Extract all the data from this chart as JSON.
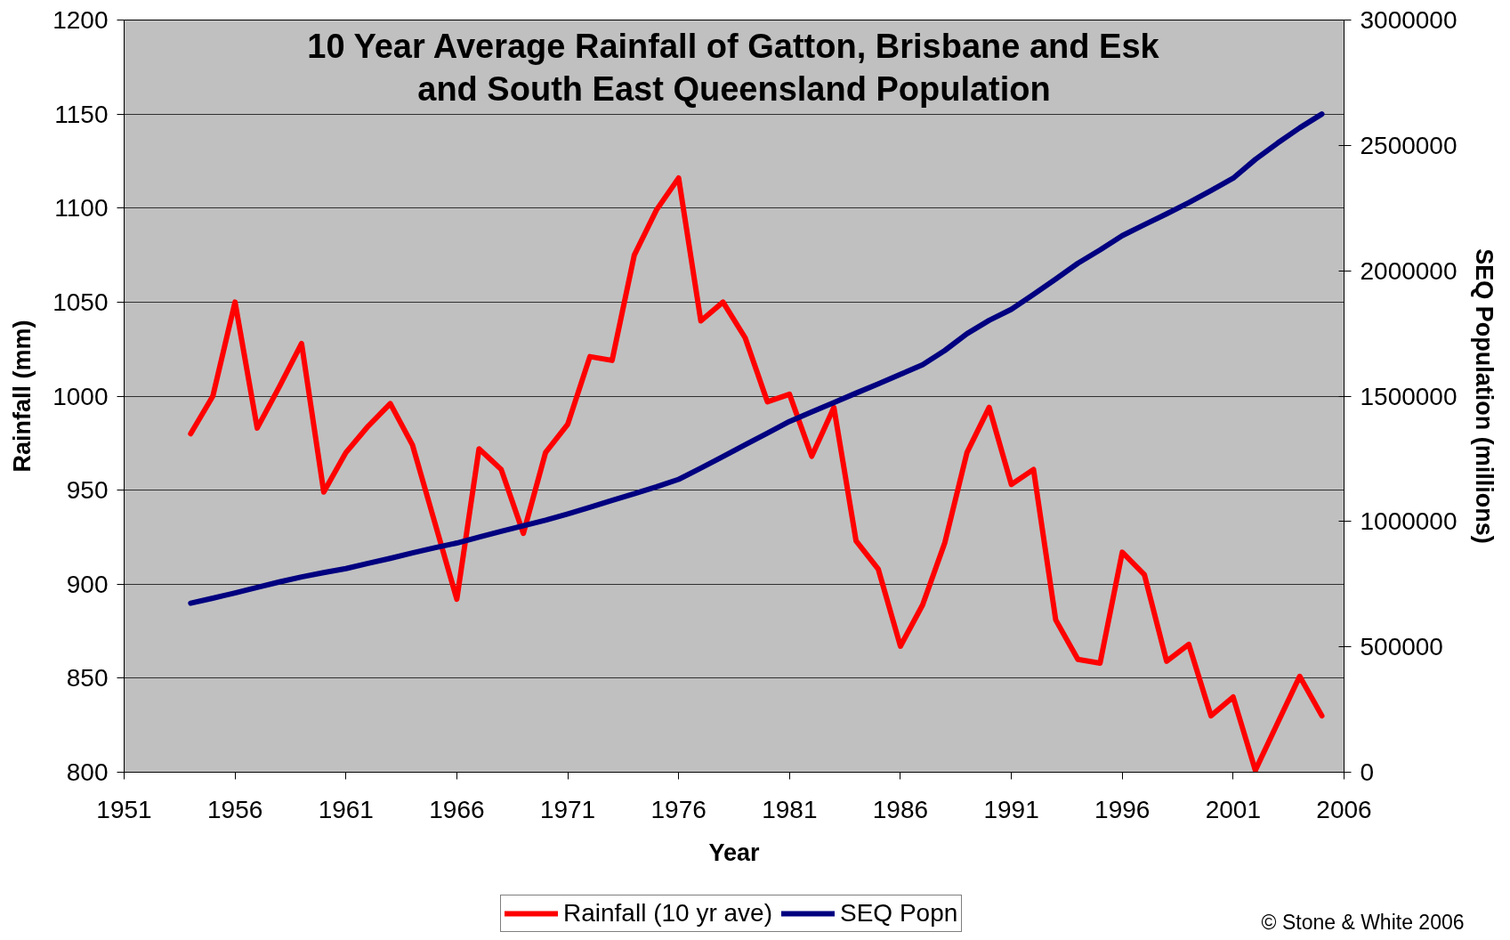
{
  "chart_data": {
    "type": "line",
    "title": "10 Year Average Rainfall of Gatton, Brisbane and Esk\nand South East Queensland Population",
    "xlabel": "Year",
    "ylabel": "Rainfall (mm)",
    "y2label": "SEQ Population (millions)",
    "annotations": [
      "© Stone & White 2006"
    ],
    "x": [
      1954,
      1955,
      1956,
      1957,
      1958,
      1959,
      1960,
      1961,
      1962,
      1963,
      1964,
      1965,
      1966,
      1967,
      1968,
      1969,
      1970,
      1971,
      1972,
      1973,
      1974,
      1975,
      1976,
      1977,
      1978,
      1979,
      1980,
      1981,
      1982,
      1983,
      1984,
      1985,
      1986,
      1987,
      1988,
      1989,
      1990,
      1991,
      1992,
      1993,
      1994,
      1995,
      1996,
      1997,
      1998,
      1999,
      2000,
      2001,
      2002,
      2003,
      2004,
      2005
    ],
    "series": [
      {
        "name": "Rainfall (10 yr ave)",
        "color": "#ff0000",
        "values": [
          980,
          1000,
          1050,
          983,
          1005,
          1028,
          949,
          970,
          984,
          996,
          974,
          933,
          892,
          972,
          961,
          927,
          970,
          985,
          1021,
          1019,
          1075,
          1099,
          1116,
          1040,
          1050,
          1031,
          997,
          1001,
          968,
          994,
          923,
          908,
          867,
          889,
          922,
          970,
          994,
          953,
          961,
          881,
          860,
          858,
          917,
          905,
          859,
          868,
          830,
          840,
          801,
          826,
          851,
          830
        ]
      },
      {
        "name": "SEQ Popn",
        "color": "#000080",
        "axis": "y2",
        "values": [
          674000,
          694000,
          715000,
          737000,
          759000,
          779000,
          796000,
          812000,
          833000,
          853000,
          875000,
          895000,
          914000,
          938000,
          961000,
          983000,
          1005000,
          1030000,
          1057000,
          1084000,
          1111000,
          1138000,
          1168000,
          1213000,
          1259000,
          1306000,
          1352000,
          1399000,
          1437000,
          1474000,
          1512000,
          1549000,
          1587000,
          1625000,
          1682000,
          1749000,
          1802000,
          1846000,
          1906000,
          1967000,
          2030000,
          2083000,
          2140000,
          2184000,
          2227000,
          2272000,
          2320000,
          2369000,
          2444000,
          2509000,
          2570000,
          2625000
        ]
      }
    ],
    "xlim": [
      1951,
      2006
    ],
    "xticks": [
      1951,
      1956,
      1961,
      1966,
      1971,
      1976,
      1981,
      1986,
      1991,
      1996,
      2001,
      2006
    ],
    "ylim": [
      800,
      1200
    ],
    "yticks": [
      800,
      850,
      900,
      950,
      1000,
      1050,
      1100,
      1150,
      1200
    ],
    "y2lim": [
      0,
      3000000
    ],
    "y2ticks": [
      0,
      500000,
      1000000,
      1500000,
      2000000,
      2500000,
      3000000
    ],
    "grid": "y",
    "legend": "bottom",
    "line_style": "solid"
  }
}
